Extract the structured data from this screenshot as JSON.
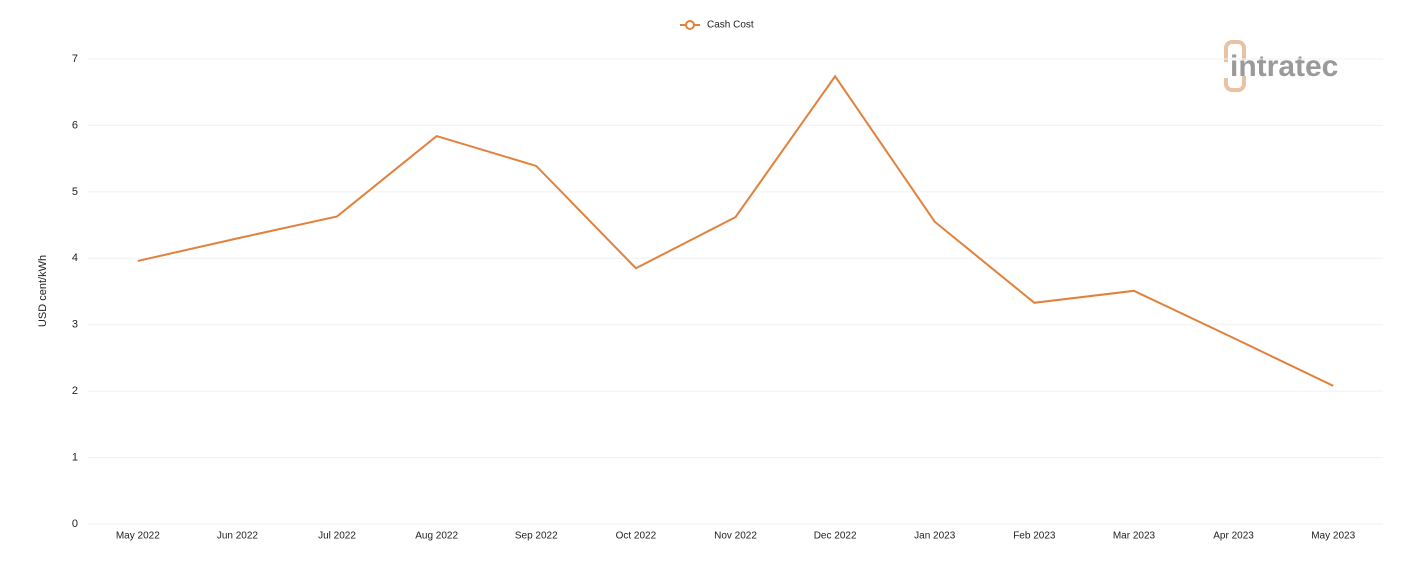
{
  "chart_data": {
    "type": "line",
    "logo": "intratec",
    "y_label": "USD cent/kWh",
    "categories": [
      "May 2022",
      "Jun 2022",
      "Jul 2022",
      "Aug 2022",
      "Sep 2022",
      "Oct 2022",
      "Nov 2022",
      "Dec 2022",
      "Jan 2023",
      "Feb 2023",
      "Mar 2023",
      "Apr 2023",
      "May 2023"
    ],
    "series": [
      {
        "name": "Cash Cost",
        "color": "#e0823d",
        "values": [
          3.96,
          4.3,
          4.63,
          5.84,
          5.39,
          3.85,
          4.62,
          6.74,
          4.55,
          3.33,
          3.51,
          2.8,
          2.08
        ]
      }
    ],
    "ylim": [
      0,
      7
    ],
    "yticks": [
      0,
      1,
      2,
      3,
      4,
      5,
      6,
      7
    ],
    "grid": true,
    "legend": "top"
  }
}
